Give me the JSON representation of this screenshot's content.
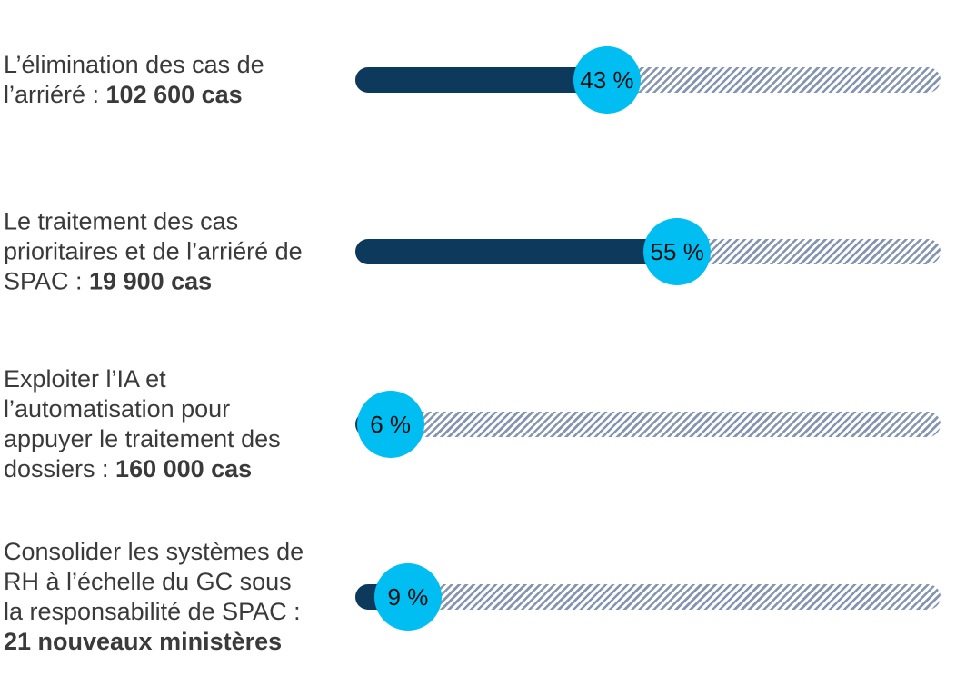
{
  "chart_data": {
    "type": "bar",
    "orientation": "horizontal",
    "unit": "%",
    "xlim": [
      0,
      100
    ],
    "grid": false,
    "legend": false,
    "title": "",
    "colors": {
      "fill": "#0d3a5c",
      "bubble": "#00bdf2",
      "hatch": "#8495b1",
      "label_text": "#3a3a3a",
      "value_text": "#111111",
      "background": "#ffffff"
    },
    "rows": [
      {
        "name": "elimination-arriere",
        "label_lines": [
          [
            {
              "text": "L’élimination des cas de",
              "bold": false
            }
          ],
          [
            {
              "text": "l’arriéré : ",
              "bold": false
            },
            {
              "text": "102 600 cas",
              "bold": true
            }
          ]
        ],
        "value": 43,
        "value_label": "43 %"
      },
      {
        "name": "traitement-cas-prioritaires",
        "label_lines": [
          [
            {
              "text": "Le traitement des cas",
              "bold": false
            }
          ],
          [
            {
              "text": "prioritaires et de l’arriéré de",
              "bold": false
            }
          ],
          [
            {
              "text": "SPAC : ",
              "bold": false
            },
            {
              "text": "19 900 cas",
              "bold": true
            }
          ]
        ],
        "value": 55,
        "value_label": "55 %"
      },
      {
        "name": "exploiter-ia-automatisation",
        "label_lines": [
          [
            {
              "text": "Exploiter l’IA et",
              "bold": false
            }
          ],
          [
            {
              "text": "l’automatisation pour",
              "bold": false
            }
          ],
          [
            {
              "text": "appuyer le traitement des",
              "bold": false
            }
          ],
          [
            {
              "text": "dossiers : ",
              "bold": false
            },
            {
              "text": "160 000 cas",
              "bold": true
            }
          ]
        ],
        "value": 6,
        "value_label": "6 %"
      },
      {
        "name": "consolider-systemes-rh",
        "label_lines": [
          [
            {
              "text": "Consolider les systèmes de",
              "bold": false
            }
          ],
          [
            {
              "text": "RH à l’échelle du GC sous",
              "bold": false
            }
          ],
          [
            {
              "text": "la responsabilité de SPAC :",
              "bold": false
            }
          ],
          [
            {
              "text": "21 nouveaux ministères",
              "bold": true
            }
          ]
        ],
        "value": 9,
        "value_label": "9 %"
      }
    ]
  }
}
